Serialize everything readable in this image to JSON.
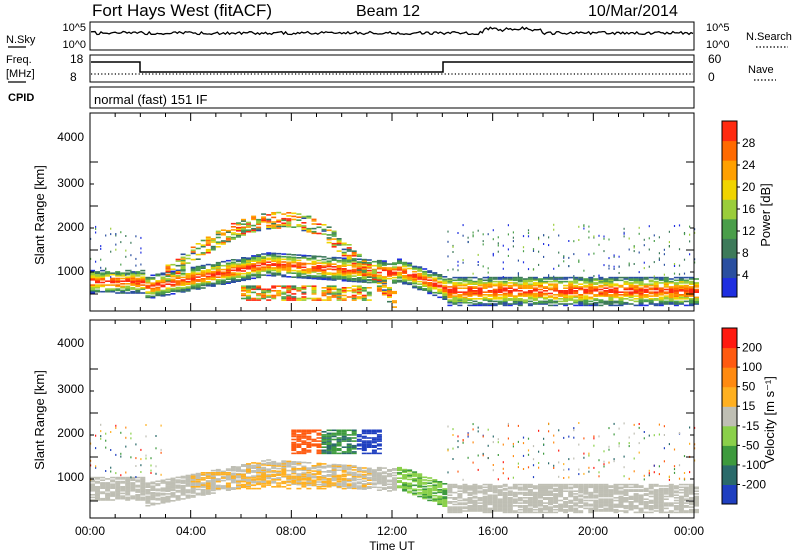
{
  "header": {
    "station": "Fort Hays West (fitACF)",
    "beam": "Beam 12",
    "date": "10/Mar/2014"
  },
  "noise_panel": {
    "left_label": "N.Sky",
    "right_label": "N.Search",
    "left_ticks": [
      "10^5",
      "10^0"
    ],
    "right_ticks": [
      "10^5",
      "10^0"
    ]
  },
  "freq_panel": {
    "left_label_line1": "Freq.",
    "left_label_line2": "[MHz]",
    "right_label": "Nave",
    "left_ticks": [
      "18",
      "8"
    ],
    "right_ticks": [
      "60",
      "0"
    ]
  },
  "cpid": {
    "label": "CPID",
    "text": "normal (fast) 151 IF"
  },
  "chart_data": [
    {
      "type": "heatmap",
      "title": "",
      "xlabel": "Time UT",
      "ylabel": "Slant Range [km]",
      "x_ticks": [
        "00:00",
        "04:00",
        "08:00",
        "12:00",
        "16:00",
        "20:00",
        "00:00"
      ],
      "y_ticks": [
        "1000",
        "2000",
        "3000",
        "4000"
      ],
      "colorbar_label": "Power [dB]",
      "colorbar_ticks": [
        "4",
        "8",
        "12",
        "16",
        "20",
        "24",
        "28"
      ],
      "colorbar_colors": [
        "#1f2fe0",
        "#2a4fa0",
        "#3d7a5a",
        "#4a9e4a",
        "#9acd3a",
        "#f0d400",
        "#ffa000",
        "#ff6a00",
        "#ff2a10"
      ],
      "features": [
        {
          "name": "main echo band",
          "x_hours": [
            0,
            24
          ],
          "range_km": [
            950,
            1400
          ]
        },
        {
          "name": "rising arc",
          "x_hours": [
            2,
            13
          ],
          "range_km": [
            1100,
            2600
          ]
        },
        {
          "name": "mid-range patch",
          "x_hours": [
            6,
            11
          ],
          "range_km": [
            900,
            1200
          ]
        }
      ]
    },
    {
      "type": "heatmap",
      "title": "",
      "xlabel": "Time UT",
      "ylabel": "Slant Range [km]",
      "x_ticks": [
        "00:00",
        "04:00",
        "08:00",
        "12:00",
        "16:00",
        "20:00",
        "00:00"
      ],
      "y_ticks": [
        "1000",
        "2000",
        "3000",
        "4000"
      ],
      "colorbar_label": "Velocity [m s⁻¹]",
      "colorbar_ticks": [
        "200",
        "100",
        "50",
        "15",
        "-15",
        "-50",
        "-100",
        "-200"
      ],
      "colorbar_colors": [
        "#1f3fc0",
        "#2a6a6a",
        "#3d9a3d",
        "#8ad04a",
        "#bfbfb4",
        "#ffb020",
        "#ff8a10",
        "#ff5a10",
        "#ff1a10"
      ]
    }
  ]
}
